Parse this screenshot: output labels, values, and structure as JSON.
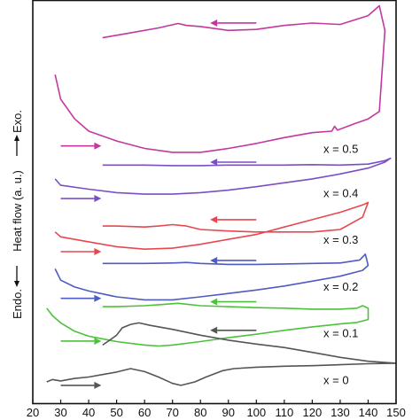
{
  "chart_data": {
    "type": "line",
    "title": "",
    "xlabel": "",
    "ylabel": "Endo. ← Heat flow (a. u.) → Exo.",
    "ylabel_parts": [
      "Endo.",
      "Heat flow (a. u.)",
      "Exo."
    ],
    "xlim": [
      20,
      150
    ],
    "x_ticks": [
      20,
      30,
      40,
      50,
      60,
      70,
      80,
      90,
      100,
      110,
      120,
      130,
      140,
      150
    ],
    "y_units": "arbitrary",
    "grid": false,
    "legend": "none",
    "series": [
      {
        "name": "x = 0.5",
        "label": "x = 0.5",
        "color": "#c2389e",
        "label_x": 124,
        "label_y": 6.2,
        "heating": [
          [
            28,
            7.7
          ],
          [
            30,
            7.2
          ],
          [
            35,
            6.8
          ],
          [
            40,
            6.55
          ],
          [
            50,
            6.35
          ],
          [
            60,
            6.2
          ],
          [
            70,
            6.12
          ],
          [
            80,
            6.12
          ],
          [
            90,
            6.2
          ],
          [
            100,
            6.3
          ],
          [
            110,
            6.42
          ],
          [
            120,
            6.52
          ],
          [
            127,
            6.55
          ],
          [
            128,
            6.65
          ],
          [
            129,
            6.57
          ],
          [
            135,
            6.7
          ],
          [
            140,
            6.8
          ],
          [
            144,
            6.95
          ],
          [
            146,
            8.6
          ]
        ],
        "cooling": [
          [
            146,
            8.6
          ],
          [
            144,
            9.1
          ],
          [
            140,
            8.9
          ],
          [
            130,
            8.72
          ],
          [
            120,
            8.75
          ],
          [
            110,
            8.7
          ],
          [
            100,
            8.62
          ],
          [
            90,
            8.6
          ],
          [
            80,
            8.68
          ],
          [
            75,
            8.7
          ],
          [
            72,
            8.74
          ],
          [
            65,
            8.65
          ],
          [
            55,
            8.55
          ],
          [
            50,
            8.5
          ],
          [
            45,
            8.45
          ]
        ],
        "heat_arrow": [
          30,
          42,
          6.25
        ],
        "cool_arrow": [
          100,
          86,
          8.75
        ]
      },
      {
        "name": "x = 0.4",
        "label": "x = 0.4",
        "color": "#7a4fc4",
        "label_x": 124,
        "label_y": 5.3,
        "heating": [
          [
            28,
            5.58
          ],
          [
            30,
            5.45
          ],
          [
            40,
            5.37
          ],
          [
            50,
            5.3
          ],
          [
            60,
            5.27
          ],
          [
            70,
            5.27
          ],
          [
            80,
            5.3
          ],
          [
            90,
            5.35
          ],
          [
            100,
            5.42
          ],
          [
            110,
            5.5
          ],
          [
            120,
            5.58
          ],
          [
            130,
            5.68
          ],
          [
            140,
            5.8
          ],
          [
            146,
            5.92
          ],
          [
            148,
            6.0
          ]
        ],
        "cooling": [
          [
            148,
            6.0
          ],
          [
            146,
            5.95
          ],
          [
            140,
            5.88
          ],
          [
            130,
            5.86
          ],
          [
            120,
            5.87
          ],
          [
            110,
            5.86
          ],
          [
            100,
            5.86
          ],
          [
            90,
            5.86
          ],
          [
            80,
            5.85
          ],
          [
            70,
            5.85
          ],
          [
            60,
            5.86
          ],
          [
            50,
            5.86
          ],
          [
            45,
            5.86
          ]
        ],
        "heat_arrow": [
          30,
          42,
          5.18
        ],
        "cool_arrow": [
          100,
          86,
          5.92
        ]
      },
      {
        "name": "x = 0.3",
        "label": "x = 0.3",
        "color": "#e8474f",
        "label_x": 124,
        "label_y": 4.35,
        "heating": [
          [
            28,
            4.5
          ],
          [
            30,
            4.4
          ],
          [
            40,
            4.3
          ],
          [
            50,
            4.2
          ],
          [
            60,
            4.15
          ],
          [
            70,
            4.17
          ],
          [
            80,
            4.25
          ],
          [
            90,
            4.35
          ],
          [
            100,
            4.45
          ],
          [
            110,
            4.6
          ],
          [
            120,
            4.75
          ],
          [
            130,
            4.9
          ],
          [
            138,
            5.05
          ],
          [
            140,
            5.1
          ]
        ],
        "cooling": [
          [
            140,
            5.1
          ],
          [
            138,
            4.8
          ],
          [
            130,
            4.55
          ],
          [
            120,
            4.5
          ],
          [
            110,
            4.5
          ],
          [
            100,
            4.5
          ],
          [
            90,
            4.52
          ],
          [
            80,
            4.55
          ],
          [
            75,
            4.62
          ],
          [
            70,
            4.65
          ],
          [
            65,
            4.62
          ],
          [
            60,
            4.6
          ],
          [
            50,
            4.62
          ],
          [
            45,
            4.62
          ]
        ],
        "heat_arrow": [
          30,
          42,
          4.1
        ],
        "cool_arrow": [
          100,
          86,
          4.75
        ]
      },
      {
        "name": "x = 0.2",
        "label": "x = 0.2",
        "color": "#4e5bc0",
        "label_x": 124,
        "label_y": 3.4,
        "heating": [
          [
            28,
            3.75
          ],
          [
            30,
            3.52
          ],
          [
            35,
            3.38
          ],
          [
            40,
            3.3
          ],
          [
            50,
            3.18
          ],
          [
            60,
            3.12
          ],
          [
            70,
            3.12
          ],
          [
            80,
            3.18
          ],
          [
            90,
            3.25
          ],
          [
            100,
            3.32
          ],
          [
            110,
            3.4
          ],
          [
            120,
            3.5
          ],
          [
            130,
            3.6
          ],
          [
            138,
            3.72
          ],
          [
            140,
            3.82
          ]
        ],
        "cooling": [
          [
            140,
            3.82
          ],
          [
            139,
            4.05
          ],
          [
            137,
            3.93
          ],
          [
            130,
            3.87
          ],
          [
            120,
            3.86
          ],
          [
            110,
            3.85
          ],
          [
            100,
            3.84
          ],
          [
            90,
            3.84
          ],
          [
            80,
            3.86
          ],
          [
            75,
            3.88
          ],
          [
            70,
            3.87
          ],
          [
            60,
            3.86
          ],
          [
            50,
            3.86
          ],
          [
            45,
            3.86
          ]
        ],
        "heat_arrow": [
          30,
          42,
          3.15
        ],
        "cool_arrow": [
          100,
          86,
          3.92
        ]
      },
      {
        "name": "x = 0.1",
        "label": "x = 0.1",
        "color": "#4cc23a",
        "label_x": 124,
        "label_y": 2.45,
        "heating": [
          [
            25,
            2.95
          ],
          [
            27,
            2.8
          ],
          [
            30,
            2.65
          ],
          [
            35,
            2.48
          ],
          [
            40,
            2.38
          ],
          [
            50,
            2.27
          ],
          [
            60,
            2.2
          ],
          [
            65,
            2.18
          ],
          [
            70,
            2.2
          ],
          [
            80,
            2.27
          ],
          [
            90,
            2.35
          ],
          [
            100,
            2.42
          ],
          [
            110,
            2.5
          ],
          [
            120,
            2.57
          ],
          [
            130,
            2.63
          ],
          [
            136,
            2.66
          ],
          [
            140,
            2.72
          ]
        ],
        "cooling": [
          [
            140,
            2.72
          ],
          [
            140,
            2.95
          ],
          [
            138,
            3.0
          ],
          [
            136,
            2.95
          ],
          [
            130,
            2.93
          ],
          [
            120,
            2.93
          ],
          [
            110,
            2.95
          ],
          [
            100,
            2.96
          ],
          [
            90,
            2.98
          ],
          [
            80,
            3.0
          ],
          [
            72,
            3.05
          ],
          [
            65,
            3.02
          ],
          [
            60,
            3.0
          ],
          [
            50,
            2.98
          ],
          [
            45,
            2.98
          ]
        ],
        "heat_arrow": [
          30,
          42,
          2.28
        ],
        "cool_arrow": [
          100,
          86,
          3.08
        ]
      },
      {
        "name": "x = 0",
        "label": "x = 0",
        "color": "#555555",
        "label_x": 124,
        "label_y": 1.5,
        "heating": [
          [
            25,
            1.45
          ],
          [
            27,
            1.5
          ],
          [
            30,
            1.47
          ],
          [
            35,
            1.52
          ],
          [
            40,
            1.55
          ],
          [
            45,
            1.6
          ],
          [
            50,
            1.65
          ],
          [
            55,
            1.72
          ],
          [
            60,
            1.66
          ],
          [
            65,
            1.55
          ],
          [
            70,
            1.42
          ],
          [
            73,
            1.38
          ],
          [
            78,
            1.45
          ],
          [
            82,
            1.55
          ],
          [
            88,
            1.68
          ],
          [
            92,
            1.72
          ],
          [
            100,
            1.75
          ],
          [
            110,
            1.77
          ],
          [
            120,
            1.78
          ],
          [
            130,
            1.8
          ],
          [
            140,
            1.82
          ],
          [
            150,
            1.83
          ]
        ],
        "cooling": [
          [
            150,
            1.83
          ],
          [
            140,
            1.87
          ],
          [
            130,
            1.95
          ],
          [
            120,
            2.05
          ],
          [
            110,
            2.15
          ],
          [
            100,
            2.22
          ],
          [
            90,
            2.3
          ],
          [
            80,
            2.4
          ],
          [
            70,
            2.52
          ],
          [
            62,
            2.6
          ],
          [
            58,
            2.65
          ],
          [
            55,
            2.62
          ],
          [
            52,
            2.55
          ],
          [
            50,
            2.4
          ],
          [
            47,
            2.28
          ],
          [
            45,
            2.2
          ]
        ],
        "heat_arrow": [
          30,
          42,
          1.38
        ],
        "cool_arrow": [
          100,
          86,
          2.5
        ]
      }
    ]
  }
}
